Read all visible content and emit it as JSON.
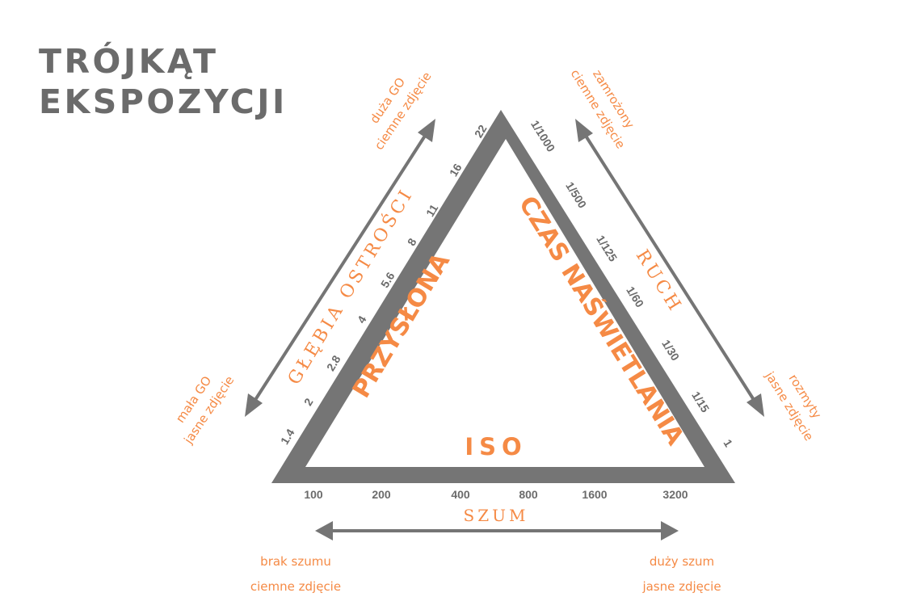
{
  "title": {
    "line1": "TRÓJKĄT",
    "line2": "EKSPOZYCJI"
  },
  "sides": {
    "aperture": {
      "label": "PRZYSŁONA",
      "outer_label": "GŁĘBIA OSTROŚCI",
      "ticks": [
        "1.4",
        "2",
        "2.8",
        "4",
        "5.6",
        "8",
        "11",
        "16",
        "22"
      ]
    },
    "shutter": {
      "label": "CZAS NAŚWIETLANIA",
      "outer_label": "RUCH",
      "ticks": [
        "1/1000",
        "1/500",
        "1/125",
        "1/60",
        "1/30",
        "1/15",
        "1"
      ]
    },
    "iso": {
      "label": "ISO",
      "outer_label": "SZUM",
      "ticks": [
        "100",
        "200",
        "400",
        "800",
        "1600",
        "3200"
      ]
    }
  },
  "annotations": {
    "aperture_high": [
      "duża GO",
      "ciemne zdjęcie"
    ],
    "aperture_low": [
      "mała GO",
      "jasne zdjęcie"
    ],
    "shutter_fast": [
      "zamrożony",
      "ciemne zdjęcie"
    ],
    "shutter_slow": [
      "rozmyty",
      "jasne zdjęcie"
    ],
    "iso_low": [
      "brak szumu",
      "ciemne zdjęcie"
    ],
    "iso_high": [
      "duży szum",
      "jasne zdjęcie"
    ]
  },
  "colors": {
    "accent": "#f58a45",
    "gray": "#757575",
    "title": "#6b6b6b"
  }
}
